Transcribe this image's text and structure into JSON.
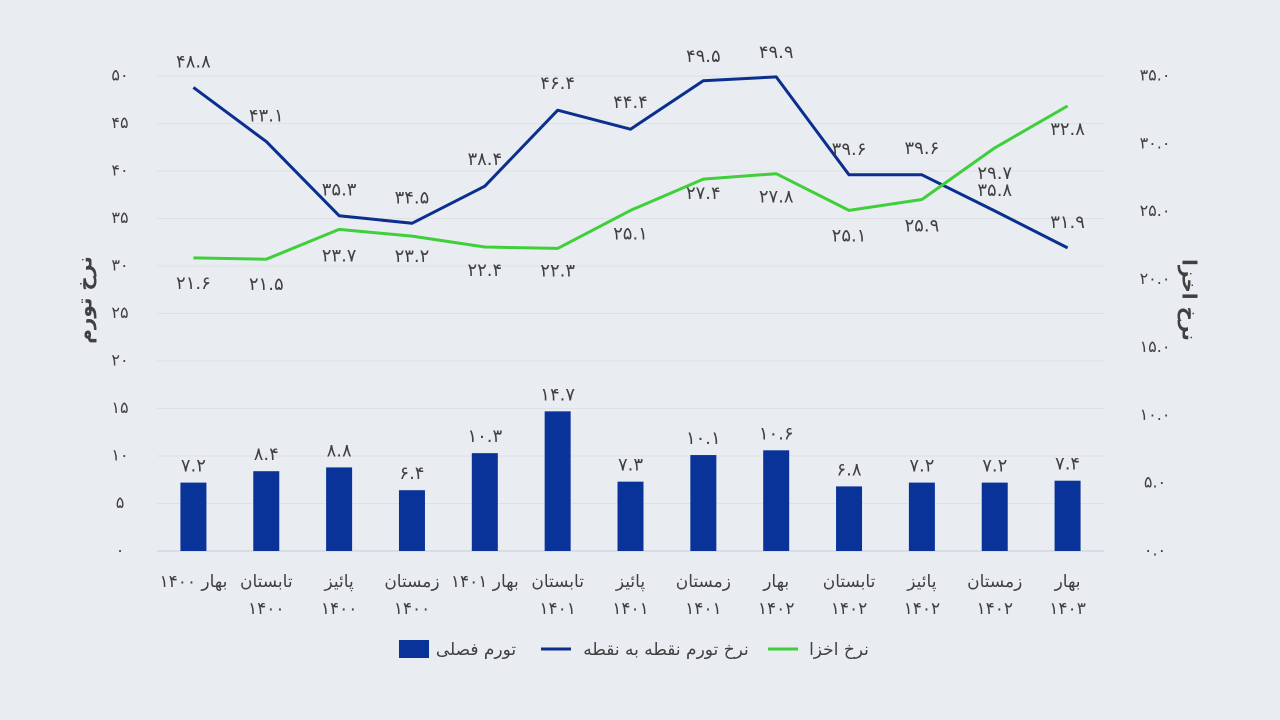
{
  "chart_data": {
    "type": "bar+line",
    "categories": [
      [
        "بهار ۱۴۰۰"
      ],
      [
        "تابستان",
        "۱۴۰۰"
      ],
      [
        "پائیز",
        "۱۴۰۰"
      ],
      [
        "زمستان",
        "۱۴۰۰"
      ],
      [
        "بهار ۱۴۰۱"
      ],
      [
        "تابستان",
        "۱۴۰۱"
      ],
      [
        "پائیز",
        "۱۴۰۱"
      ],
      [
        "زمستان",
        "۱۴۰۱"
      ],
      [
        "بهار",
        "۱۴۰۲"
      ],
      [
        "تابستان",
        "۱۴۰۲"
      ],
      [
        "پائیز",
        "۱۴۰۲"
      ],
      [
        "زمستان",
        "۱۴۰۲"
      ],
      [
        "بهار",
        "۱۴۰۳"
      ]
    ],
    "series": [
      {
        "name": "تورم فصلی",
        "kind": "bar",
        "axis": "left",
        "color": "#0a3399",
        "values": [
          7.2,
          8.4,
          8.8,
          6.4,
          10.3,
          14.7,
          7.3,
          10.1,
          10.6,
          6.8,
          7.2,
          7.2,
          7.4
        ],
        "labels": [
          "۷.۲",
          "۸.۴",
          "۸.۸",
          "۶.۴",
          "۱۰.۳",
          "۱۴.۷",
          "۷.۳",
          "۱۰.۱",
          "۱۰.۶",
          "۶.۸",
          "۷.۲",
          "۷.۲",
          "۷.۴"
        ]
      },
      {
        "name": "نرخ تورم نقطه به نقطه",
        "kind": "line",
        "axis": "left",
        "color": "#0a2f8f",
        "values": [
          48.8,
          43.1,
          35.3,
          34.5,
          38.4,
          46.4,
          44.4,
          49.5,
          49.9,
          39.6,
          39.6,
          35.8,
          31.9
        ],
        "labels": [
          "۴۸.۸",
          "۴۳.۱",
          "۳۵.۳",
          "۳۴.۵",
          "۳۸.۴",
          "۴۶.۴",
          "۴۴.۴",
          "۴۹.۵",
          "۴۹.۹",
          "۳۹.۶",
          "۳۹.۶",
          "۳۵.۸",
          "۳۱.۹"
        ]
      },
      {
        "name": "نرخ اخزا",
        "kind": "line",
        "axis": "right",
        "color": "#3fcf3a",
        "values": [
          21.6,
          21.5,
          23.7,
          23.2,
          22.4,
          22.3,
          25.1,
          27.4,
          27.8,
          25.1,
          25.9,
          29.7,
          32.8
        ],
        "labels": [
          "۲۱.۶",
          "۲۱.۵",
          "۲۳.۷",
          "۲۳.۲",
          "۲۲.۴",
          "۲۲.۳",
          "۲۵.۱",
          "۲۷.۴",
          "۲۷.۸",
          "۲۵.۱",
          "۲۵.۹",
          "۲۹.۷",
          "۳۲.۸"
        ]
      }
    ],
    "left_axis": {
      "title": "نرخ تورم",
      "ylim": [
        0,
        50
      ],
      "ticks": [
        0,
        5,
        10,
        15,
        20,
        25,
        30,
        35,
        40,
        45,
        50
      ],
      "tick_labels": [
        "۰",
        "۵",
        "۱۰",
        "۱۵",
        "۲۰",
        "۲۵",
        "۳۰",
        "۳۵",
        "۴۰",
        "۴۵",
        "۵۰"
      ]
    },
    "right_axis": {
      "title": "نرخ اخزا",
      "ylim": [
        0,
        35
      ],
      "ticks": [
        0,
        5,
        10,
        15,
        20,
        25,
        30,
        35
      ],
      "tick_labels": [
        "۰.۰",
        "۵.۰",
        "۱۰.۰",
        "۱۵.۰",
        "۲۰.۰",
        "۲۵.۰",
        "۳۰.۰",
        "۳۵.۰"
      ]
    },
    "grid": true,
    "legend_position": "bottom"
  }
}
